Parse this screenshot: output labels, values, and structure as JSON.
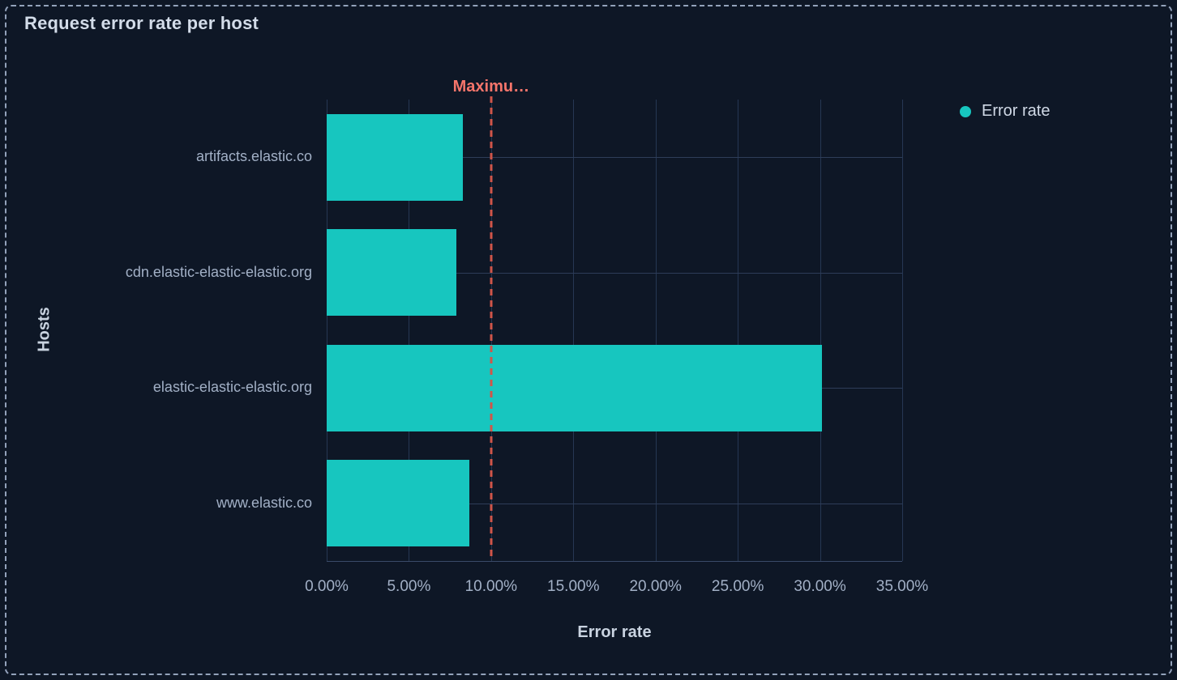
{
  "panel": {
    "title": "Request error rate per host"
  },
  "legend": {
    "items": [
      {
        "label": "Error rate",
        "color": "#17c6bf"
      }
    ]
  },
  "chart_data": {
    "type": "bar",
    "orientation": "horizontal",
    "title": "Request error rate per host",
    "xlabel": "Error rate",
    "ylabel": "Hosts",
    "categories": [
      "artifacts.elastic.co",
      "cdn.elastic-elastic-elastic.org",
      "elastic-elastic-elastic.org",
      "www.elastic.co"
    ],
    "series": [
      {
        "name": "Error rate",
        "values": [
          8.3,
          7.9,
          30.1,
          8.7
        ],
        "unit": "%",
        "color": "#17c6bf"
      }
    ],
    "xlim": [
      0,
      35
    ],
    "xticks": [
      "0.00%",
      "5.00%",
      "10.00%",
      "15.00%",
      "20.00%",
      "25.00%",
      "30.00%",
      "35.00%"
    ],
    "xtick_values": [
      0,
      5,
      10,
      15,
      20,
      25,
      30,
      35
    ],
    "grid": true,
    "legend_position": "top-right",
    "threshold": {
      "label": "Maximu…",
      "value": 10,
      "style": "dashed",
      "line_color": "#d05549",
      "label_color": "#f5756b"
    }
  },
  "colors": {
    "background": "#0e1726",
    "panel_border": "#93a2bb",
    "bar": "#17c6bf",
    "gridline": "#263753",
    "axis_line": "#3a4a68",
    "tick_label": "#a2b0c6",
    "title": "#d3dce9",
    "axis_title": "#c9d3e0",
    "legend_label": "#d0d9e6",
    "threshold_line": "#d05549",
    "threshold_label": "#f5756b"
  }
}
